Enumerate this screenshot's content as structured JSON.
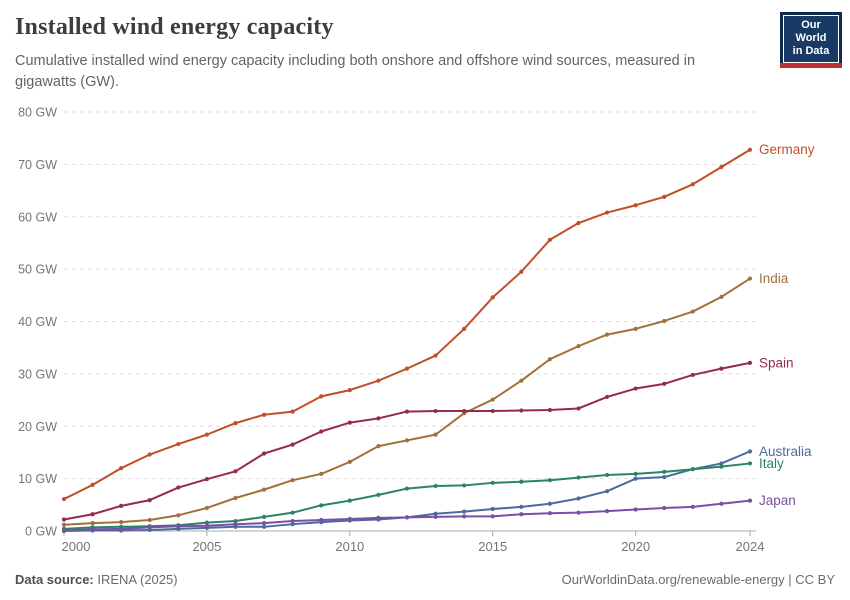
{
  "header": {
    "title": "Installed wind energy capacity",
    "subtitle": "Cumulative installed wind energy capacity including both onshore and offshore wind sources, measured in gigawatts (GW)."
  },
  "logo": {
    "line1": "Our World",
    "line2": "in Data",
    "navy": "#12294e",
    "red": "#bd3036"
  },
  "footer": {
    "datasource_label": "Data source:",
    "datasource_value": " IRENA (2025)",
    "right_text": "OurWorldinData.org/renewable-energy | CC BY"
  },
  "chart_data": {
    "type": "line",
    "title": "Installed wind energy capacity",
    "xlabel": "",
    "ylabel": "",
    "ylim": [
      0,
      80
    ],
    "grid": true,
    "legend_position": "end-of-line",
    "y_ticks": [
      0,
      10,
      20,
      30,
      40,
      50,
      60,
      70,
      80
    ],
    "y_tick_labels": [
      "0 GW",
      "10 GW",
      "20 GW",
      "30 GW",
      "40 GW",
      "50 GW",
      "60 GW",
      "70 GW",
      "80 GW"
    ],
    "x_ticks": [
      2000,
      2005,
      2010,
      2015,
      2020,
      2024
    ],
    "x_tick_labels": [
      "2000",
      "2005",
      "2010",
      "2015",
      "2020",
      "2024"
    ],
    "x": [
      2000,
      2001,
      2002,
      2003,
      2004,
      2005,
      2006,
      2007,
      2008,
      2009,
      2010,
      2011,
      2012,
      2013,
      2014,
      2015,
      2016,
      2017,
      2018,
      2019,
      2020,
      2021,
      2022,
      2023,
      2024
    ],
    "series": [
      {
        "name": "Germany",
        "color": "#c24e27",
        "values": [
          6.1,
          8.8,
          12.0,
          14.6,
          16.6,
          18.4,
          20.6,
          22.2,
          22.8,
          25.7,
          26.9,
          28.7,
          31.0,
          33.5,
          38.6,
          44.6,
          49.5,
          55.6,
          58.8,
          60.8,
          62.2,
          63.8,
          66.2,
          69.5,
          72.8
        ]
      },
      {
        "name": "India",
        "color": "#a2713a",
        "values": [
          1.2,
          1.5,
          1.7,
          2.1,
          3.0,
          4.4,
          6.3,
          7.9,
          9.7,
          10.9,
          13.2,
          16.2,
          17.3,
          18.4,
          22.5,
          25.1,
          28.7,
          32.8,
          35.3,
          37.5,
          38.6,
          40.1,
          41.9,
          44.7,
          48.2
        ]
      },
      {
        "name": "Spain",
        "color": "#942b4d",
        "values": [
          2.2,
          3.2,
          4.8,
          5.9,
          8.3,
          9.9,
          11.4,
          14.8,
          16.5,
          19.0,
          20.7,
          21.5,
          22.8,
          22.9,
          22.9,
          22.9,
          23.0,
          23.1,
          23.4,
          25.6,
          27.2,
          28.1,
          29.8,
          31.0,
          32.1
        ]
      },
      {
        "name": "Australia",
        "color": "#4c6a9c",
        "values": [
          0.0,
          0.1,
          0.1,
          0.2,
          0.4,
          0.6,
          0.8,
          0.8,
          1.3,
          1.7,
          2.0,
          2.2,
          2.6,
          3.3,
          3.7,
          4.2,
          4.6,
          5.2,
          6.2,
          7.6,
          10.0,
          10.3,
          11.8,
          12.9,
          15.2
        ]
      },
      {
        "name": "Italy",
        "color": "#2b8465",
        "values": [
          0.4,
          0.7,
          0.8,
          0.9,
          1.1,
          1.6,
          1.9,
          2.7,
          3.5,
          4.9,
          5.8,
          6.9,
          8.1,
          8.6,
          8.7,
          9.2,
          9.4,
          9.7,
          10.2,
          10.7,
          10.9,
          11.3,
          11.8,
          12.3,
          12.9
        ]
      },
      {
        "name": "Japan",
        "color": "#7a4fa6",
        "values": [
          0.1,
          0.3,
          0.4,
          0.7,
          0.9,
          1.0,
          1.3,
          1.5,
          1.9,
          2.1,
          2.3,
          2.5,
          2.6,
          2.7,
          2.8,
          2.8,
          3.2,
          3.4,
          3.5,
          3.8,
          4.1,
          4.4,
          4.6,
          5.2,
          5.8
        ]
      }
    ]
  }
}
